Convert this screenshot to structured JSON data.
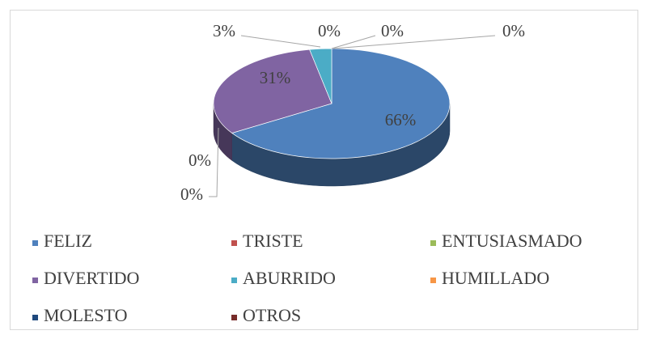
{
  "chart_data": {
    "type": "pie",
    "categories": [
      "FELIZ",
      "TRISTE",
      "ENTUSIASMADO",
      "DIVERTIDO",
      "ABURRIDO",
      "HUMILLADO",
      "MOLESTO",
      "OTROS"
    ],
    "values": [
      66,
      0,
      0,
      31,
      3,
      0,
      0,
      0
    ],
    "value_labels": [
      "66%",
      "0%",
      "0%",
      "31%",
      "3%",
      "0%",
      "0%",
      "0%"
    ],
    "colors": [
      "#4f81bd",
      "#c0504d",
      "#9bbb59",
      "#8064a2",
      "#4bacc6",
      "#f79646",
      "#1f497d",
      "#772c2a"
    ],
    "legend": "bottom"
  }
}
